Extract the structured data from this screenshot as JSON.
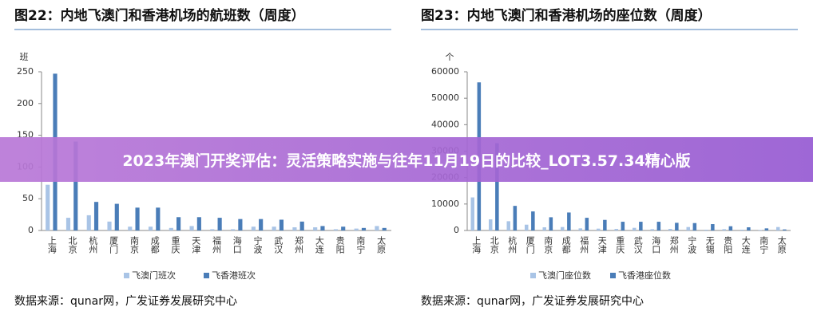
{
  "banner": {
    "title": "2023年澳门开奖评估：灵活策略实施与往年11月19日的比较_LOT3.57.34精心版"
  },
  "chart_data": [
    {
      "type": "bar",
      "title": "图22：内地飞澳门和香港机场的航班数（周度）",
      "y_label": "班",
      "categories": [
        "上海",
        "北京",
        "杭州",
        "厦门",
        "南京",
        "成都",
        "重庆",
        "天津",
        "福州",
        "海口",
        "宁波",
        "武汉",
        "郑州",
        "大连",
        "贵阳",
        "南宁",
        "太原"
      ],
      "series": [
        {
          "name": "飞澳门班次",
          "color": "#a9c4e6",
          "values": [
            72,
            20,
            24,
            14,
            6,
            6,
            4,
            7,
            2,
            2,
            6,
            6,
            5,
            5,
            2,
            3,
            7
          ]
        },
        {
          "name": "飞香港班次",
          "color": "#4a7db8",
          "values": [
            247,
            140,
            45,
            42,
            36,
            36,
            21,
            21,
            20,
            18,
            18,
            17,
            14,
            7,
            6,
            4,
            4
          ]
        }
      ],
      "ylim": [
        0,
        250
      ],
      "yticks": [
        0,
        50,
        100,
        150,
        200,
        250
      ],
      "source": "数据来源：qunar网，广发证券发展研究中心"
    },
    {
      "type": "bar",
      "title": "图23：内地飞澳门和香港机场的座位数（周度）",
      "y_label": "个",
      "categories": [
        "上海",
        "北京",
        "杭州",
        "厦门",
        "南京",
        "成都",
        "福州",
        "天津",
        "重庆",
        "武汉",
        "海口",
        "郑州",
        "宁波",
        "无锡",
        "贵阳",
        "大连",
        "南宁",
        "太原"
      ],
      "series": [
        {
          "name": "飞澳门座位数",
          "color": "#a9c4e6",
          "values": [
            12500,
            4200,
            3500,
            2200,
            1200,
            1300,
            800,
            700,
            600,
            1000,
            500,
            600,
            1300,
            300,
            500,
            300,
            200,
            1300
          ]
        },
        {
          "name": "飞香港座位数",
          "color": "#4a7db8",
          "values": [
            56000,
            33000,
            9300,
            7200,
            5000,
            6800,
            4800,
            4000,
            3300,
            3300,
            3300,
            2900,
            2800,
            2400,
            1600,
            1200,
            800,
            400
          ]
        }
      ],
      "ylim": [
        0,
        60000
      ],
      "yticks": [
        0,
        10000,
        20000,
        30000,
        40000,
        50000,
        60000
      ],
      "source": "数据来源：qunar网，广发证券发展研究中心"
    }
  ]
}
